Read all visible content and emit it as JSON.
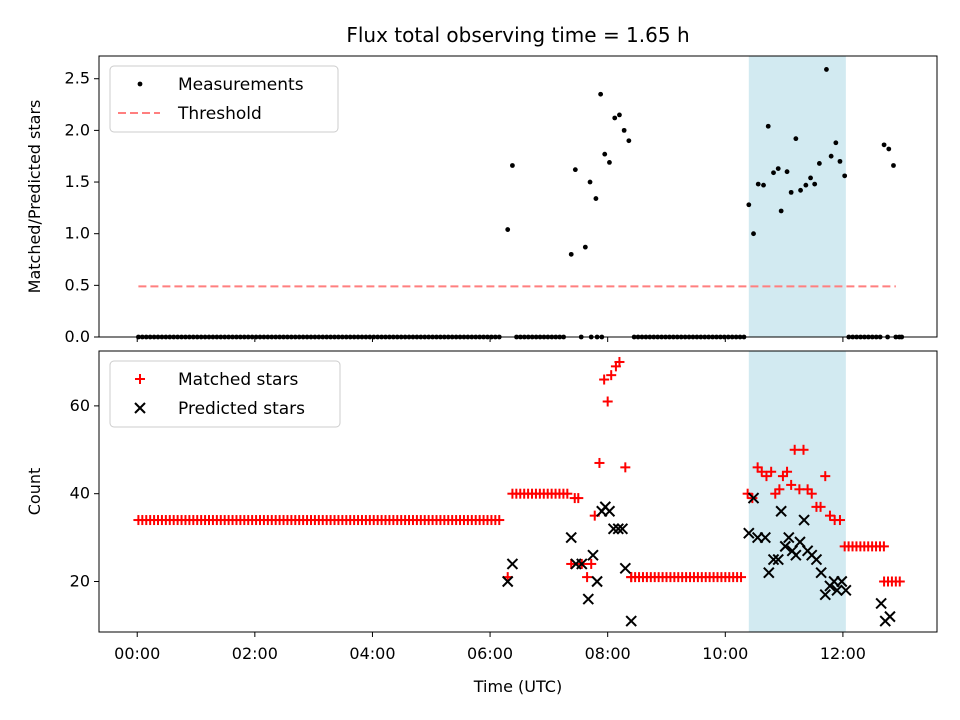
{
  "chart_data": {
    "type": "scatter",
    "title": "Flux total observing time = 1.65 h",
    "xlabel": "Time (UTC)",
    "x_unit": "hours",
    "xlim": [
      -0.65,
      13.6
    ],
    "xticks": [
      0,
      2,
      4,
      6,
      8,
      10,
      12
    ],
    "xtick_labels": [
      "00:00",
      "02:00",
      "04:00",
      "06:00",
      "08:00",
      "10:00",
      "12:00"
    ],
    "highlight_span": [
      10.4,
      12.05
    ],
    "highlight_color": "#add8e6",
    "panels": [
      {
        "id": "ratio",
        "ylabel": "Matched/Predicted stars",
        "ylim": [
          0,
          2.72
        ],
        "yticks": [
          0,
          0.5,
          1,
          1.5,
          2,
          2.5
        ],
        "ytick_labels": [
          "0.0",
          "0.5",
          "1.0",
          "1.5",
          "2.0",
          "2.5"
        ],
        "legend": {
          "placement": "upper left",
          "entries": [
            "Measurements",
            "Threshold"
          ]
        },
        "threshold": {
          "label": "Threshold",
          "value": 0.49,
          "x_range": [
            0.02,
            12.9
          ],
          "color": "#ff7f7f"
        },
        "series": [
          {
            "name": "Measurements",
            "marker": "dot",
            "color": "#000000",
            "groups": [
              {
                "zero_run": [
                  0.02,
                  6.2
                ],
                "step": 0.0667
              },
              {
                "zero_run": [
                  6.45,
                  7.3
                ],
                "step": 0.0667
              },
              {
                "zero_run": [
                  8.45,
                  10.38
                ],
                "step": 0.0667
              },
              {
                "zero_run": [
                  12.1,
                  12.7
                ],
                "step": 0.0667
              }
            ],
            "points": [
              [
                6.3,
                1.04
              ],
              [
                6.38,
                1.66
              ],
              [
                7.38,
                0.8
              ],
              [
                7.45,
                1.62
              ],
              [
                7.55,
                0.0
              ],
              [
                7.62,
                0.87
              ],
              [
                7.7,
                1.5
              ],
              [
                7.8,
                1.34
              ],
              [
                7.88,
                2.35
              ],
              [
                7.95,
                1.77
              ],
              [
                8.03,
                1.69
              ],
              [
                8.12,
                2.12
              ],
              [
                8.2,
                2.15
              ],
              [
                8.28,
                2.0
              ],
              [
                8.36,
                1.9
              ],
              [
                7.72,
                0.0
              ],
              [
                7.82,
                0.0
              ],
              [
                7.9,
                0.0
              ],
              [
                10.4,
                1.28
              ],
              [
                10.48,
                1.0
              ],
              [
                10.56,
                1.48
              ],
              [
                10.65,
                1.47
              ],
              [
                10.73,
                2.04
              ],
              [
                10.82,
                1.59
              ],
              [
                10.9,
                1.63
              ],
              [
                10.95,
                1.22
              ],
              [
                11.05,
                1.6
              ],
              [
                11.12,
                1.4
              ],
              [
                11.2,
                1.92
              ],
              [
                11.28,
                1.42
              ],
              [
                11.37,
                1.47
              ],
              [
                11.45,
                1.54
              ],
              [
                11.52,
                1.48
              ],
              [
                11.6,
                1.68
              ],
              [
                11.72,
                2.59
              ],
              [
                11.8,
                1.75
              ],
              [
                11.88,
                1.88
              ],
              [
                11.95,
                1.7
              ],
              [
                12.03,
                1.56
              ],
              [
                12.7,
                1.86
              ],
              [
                12.78,
                1.82
              ],
              [
                12.86,
                1.66
              ],
              [
                12.76,
                0.0
              ],
              [
                12.9,
                0.0
              ],
              [
                12.96,
                0.0
              ],
              [
                13.0,
                0.0
              ]
            ]
          }
        ]
      },
      {
        "id": "counts",
        "ylabel": "Count",
        "ylim": [
          8.5,
          72.5
        ],
        "yticks": [
          20,
          40,
          60
        ],
        "ytick_labels": [
          "20",
          "40",
          "60"
        ],
        "legend": {
          "placement": "upper left",
          "entries": [
            "Matched stars",
            "Predicted stars"
          ]
        },
        "series": [
          {
            "name": "Matched stars",
            "marker": "plus",
            "color": "#ff0000",
            "groups": [
              {
                "const_run": [
                  0.02,
                  6.22
                ],
                "step": 0.0667,
                "y": 34
              },
              {
                "const_run": [
                  6.38,
                  7.38
                ],
                "step": 0.0667,
                "y": 40
              },
              {
                "const_run": [
                  8.4,
                  10.28
                ],
                "step": 0.0667,
                "y": 21
              },
              {
                "const_run": [
                  12.03,
                  12.72
                ],
                "step": 0.0667,
                "y": 28
              },
              {
                "const_run": [
                  12.7,
                  12.98
                ],
                "step": 0.0667,
                "y": 20
              }
            ],
            "points": [
              [
                6.3,
                21
              ],
              [
                7.38,
                24
              ],
              [
                7.44,
                39
              ],
              [
                7.5,
                39
              ],
              [
                7.56,
                24
              ],
              [
                7.65,
                21
              ],
              [
                7.72,
                24
              ],
              [
                7.78,
                35
              ],
              [
                7.86,
                47
              ],
              [
                7.94,
                66
              ],
              [
                8.0,
                61
              ],
              [
                8.06,
                67
              ],
              [
                8.14,
                69
              ],
              [
                8.2,
                70
              ],
              [
                8.3,
                46
              ],
              [
                8.4,
                21
              ],
              [
                10.38,
                40
              ],
              [
                10.46,
                39
              ],
              [
                10.55,
                46
              ],
              [
                10.62,
                45
              ],
              [
                10.7,
                44
              ],
              [
                10.78,
                45
              ],
              [
                10.85,
                40
              ],
              [
                10.92,
                41
              ],
              [
                10.98,
                44
              ],
              [
                11.05,
                45
              ],
              [
                11.12,
                42
              ],
              [
                11.18,
                50
              ],
              [
                11.26,
                41
              ],
              [
                11.33,
                50
              ],
              [
                11.4,
                41
              ],
              [
                11.47,
                40
              ],
              [
                11.55,
                37
              ],
              [
                11.62,
                37
              ],
              [
                11.7,
                44
              ],
              [
                11.78,
                35
              ],
              [
                11.86,
                34
              ],
              [
                11.95,
                34
              ]
            ]
          },
          {
            "name": "Predicted stars",
            "marker": "x",
            "color": "#000000",
            "points": [
              [
                6.3,
                20
              ],
              [
                6.38,
                24
              ],
              [
                7.38,
                30
              ],
              [
                7.46,
                24
              ],
              [
                7.56,
                24
              ],
              [
                7.67,
                16
              ],
              [
                7.75,
                26
              ],
              [
                7.82,
                20
              ],
              [
                7.9,
                36
              ],
              [
                7.96,
                37
              ],
              [
                8.03,
                36
              ],
              [
                8.1,
                32
              ],
              [
                8.18,
                32
              ],
              [
                8.25,
                32
              ],
              [
                8.3,
                23
              ],
              [
                8.4,
                11
              ],
              [
                10.4,
                31
              ],
              [
                10.48,
                39
              ],
              [
                10.55,
                30
              ],
              [
                10.68,
                30
              ],
              [
                10.74,
                22
              ],
              [
                10.82,
                25
              ],
              [
                10.9,
                25
              ],
              [
                10.95,
                36
              ],
              [
                11.02,
                28
              ],
              [
                11.08,
                30
              ],
              [
                11.14,
                27
              ],
              [
                11.2,
                26
              ],
              [
                11.27,
                29
              ],
              [
                11.34,
                34
              ],
              [
                11.4,
                27
              ],
              [
                11.47,
                26
              ],
              [
                11.55,
                25
              ],
              [
                11.63,
                22
              ],
              [
                11.7,
                17
              ],
              [
                11.78,
                19
              ],
              [
                11.85,
                20
              ],
              [
                11.9,
                18
              ],
              [
                11.98,
                20
              ],
              [
                12.05,
                18
              ],
              [
                12.65,
                15
              ],
              [
                12.72,
                11
              ],
              [
                12.8,
                12
              ]
            ]
          }
        ]
      }
    ]
  }
}
